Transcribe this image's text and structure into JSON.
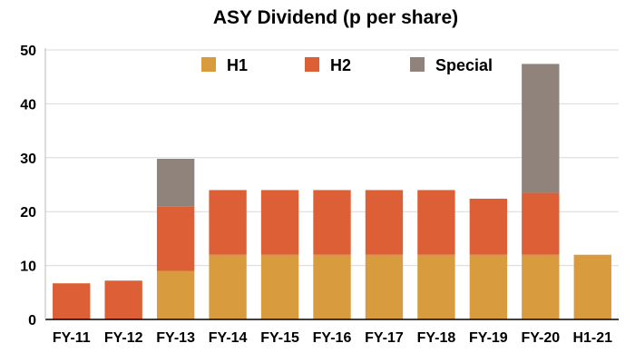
{
  "chart_data": {
    "type": "bar",
    "stacked": true,
    "title": "ASY Dividend (p per share)",
    "xlabel": "",
    "ylabel": "",
    "ylim": [
      0,
      50
    ],
    "yticks": [
      0,
      10,
      20,
      30,
      40,
      50
    ],
    "grid": "horizontal",
    "legend_position": "top",
    "categories": [
      "FY-11",
      "FY-12",
      "FY-13",
      "FY-14",
      "FY-15",
      "FY-16",
      "FY-17",
      "FY-18",
      "FY-19",
      "FY-20",
      "H1-21"
    ],
    "series": [
      {
        "name": "H1",
        "color": "#d89c3e",
        "values": [
          0,
          0,
          9,
          12,
          12,
          12,
          12,
          12,
          12,
          12,
          12
        ]
      },
      {
        "name": "H2",
        "color": "#dc5f36",
        "values": [
          6.7,
          7.2,
          12,
          12,
          12,
          12,
          12,
          12,
          10.4,
          11.5,
          0
        ]
      },
      {
        "name": "Special",
        "color": "#8f837b",
        "values": [
          0,
          0,
          8.8,
          0,
          0,
          0,
          0,
          0,
          0,
          23.9,
          0
        ]
      }
    ]
  }
}
